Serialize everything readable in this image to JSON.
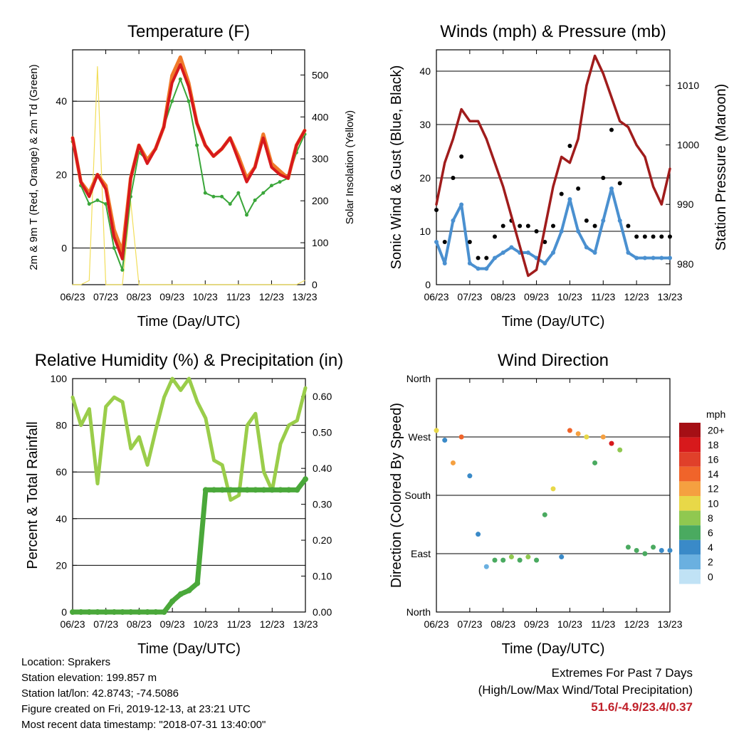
{
  "common": {
    "xticks": [
      "06/23",
      "07/23",
      "08/23",
      "09/23",
      "10/23",
      "11/23",
      "12/23",
      "13/23"
    ],
    "xlabel": "Time (Day/UTC)"
  },
  "info": {
    "location": "Location: Sprakers",
    "elevation": "Station elevation: 199.857 m",
    "latlon": "Station lat/lon: 42.8743; -74.5086",
    "created": "Figure created on Fri, 2019-12-13, at 23:21 UTC",
    "recent": "Most recent data timestamp: \"2018-07-31 13:40:00\""
  },
  "extremes": {
    "title": "Extremes For Past 7 Days",
    "subtitle": "(High/Low/Max Wind/Total Precipitation)",
    "values": "51.6/-4.9/23.4/0.37"
  },
  "colors": {
    "temp_2m": "#d7191c",
    "temp_9m": "#f07a2a",
    "dewpoint": "#3aa63a",
    "solar": "#f2de5a",
    "wind": "#4a90d0",
    "gust": "#000000",
    "pressure": "#a01c1c",
    "rh": "#9acd4a",
    "precip": "#4aa83a"
  },
  "chart_data": [
    {
      "type": "line",
      "title": "Temperature (F)",
      "xlabel": "Time (Day/UTC)",
      "ylabel": "2m & 9m T (Red, Orange) & 2m Td (Green)",
      "ylabel2": "Solar Insolation (Yellow)",
      "ylim": [
        -10,
        54
      ],
      "y2lim": [
        0,
        560
      ],
      "yticks": [
        0,
        20,
        40
      ],
      "y2ticks": [
        0,
        100,
        200,
        300,
        400,
        500
      ],
      "x": [
        0,
        0.25,
        0.5,
        0.75,
        1,
        1.25,
        1.5,
        1.75,
        2,
        2.25,
        2.5,
        2.75,
        3,
        3.25,
        3.5,
        3.75,
        4,
        4.25,
        4.5,
        4.75,
        5,
        5.25,
        5.5,
        5.75,
        6,
        6.25,
        6.5,
        6.75,
        7
      ],
      "series": [
        {
          "name": "2m T",
          "values": [
            30,
            18,
            14,
            20,
            16,
            3,
            -3,
            19,
            28,
            23,
            27,
            33,
            45,
            50,
            44,
            34,
            28,
            25,
            27,
            30,
            24,
            18,
            22,
            30,
            22,
            20,
            19,
            28,
            32
          ]
        },
        {
          "name": "9m T",
          "values": [
            30,
            18,
            15,
            20,
            17,
            5,
            -1,
            19,
            28,
            24,
            27,
            33,
            47,
            52,
            45,
            34,
            28,
            25,
            27,
            30,
            25,
            19,
            22,
            31,
            23,
            21,
            19,
            28,
            32
          ]
        },
        {
          "name": "2m Td",
          "values": [
            29,
            17,
            12,
            13,
            12,
            0,
            -6,
            14,
            26,
            24,
            27,
            33,
            40,
            46,
            40,
            28,
            15,
            14,
            14,
            12,
            15,
            9,
            13,
            15,
            17,
            18,
            19,
            26,
            31
          ]
        },
        {
          "name": "Solar",
          "values": [
            0,
            0,
            10,
            520,
            0,
            0,
            0,
            200,
            0,
            0,
            0,
            0,
            0,
            0,
            0,
            0,
            0,
            0,
            0,
            0,
            0,
            0,
            0,
            0,
            0,
            0,
            0,
            0,
            10
          ]
        }
      ]
    },
    {
      "type": "scatter",
      "title": "Winds (mph) & Pressure (mb)",
      "xlabel": "Time (Day/UTC)",
      "ylabel": "Sonic Wind & Gust (Blue, Black)",
      "ylabel2": "Station Pressure (Maroon)",
      "ylim": [
        0,
        44
      ],
      "y2lim": [
        976.5,
        1016
      ],
      "yticks": [
        0,
        10,
        20,
        30,
        40
      ],
      "y2ticks": [
        980,
        990,
        1000,
        1010
      ],
      "x": [
        0,
        0.25,
        0.5,
        0.75,
        1,
        1.25,
        1.5,
        1.75,
        2,
        2.25,
        2.5,
        2.75,
        3,
        3.25,
        3.5,
        3.75,
        4,
        4.25,
        4.5,
        4.75,
        5,
        5.25,
        5.5,
        5.75,
        6,
        6.25,
        6.5,
        6.75,
        7
      ],
      "series": [
        {
          "name": "Wind",
          "values": [
            8,
            4,
            12,
            15,
            4,
            3,
            3,
            5,
            6,
            7,
            6,
            6,
            5,
            4,
            6,
            10,
            16,
            10,
            7,
            6,
            12,
            18,
            12,
            6,
            5,
            5,
            5,
            5,
            5
          ]
        },
        {
          "name": "Gust",
          "values": [
            14,
            8,
            20,
            24,
            8,
            5,
            5,
            9,
            11,
            12,
            11,
            11,
            10,
            8,
            11,
            17,
            26,
            18,
            12,
            11,
            20,
            29,
            19,
            11,
            9,
            9,
            9,
            9,
            9
          ]
        },
        {
          "name": "Pressure",
          "values": [
            990,
            997,
            1001,
            1006,
            1004,
            1004,
            1001,
            997,
            993,
            988,
            983,
            978,
            979,
            986,
            993,
            998,
            997,
            1001,
            1010,
            1015,
            1012,
            1008,
            1004,
            1003,
            1000,
            998,
            993,
            990,
            996
          ]
        }
      ]
    },
    {
      "type": "line",
      "title": "Relative Humidity (%) & Precipitation (in)",
      "xlabel": "Time (Day/UTC)",
      "ylabel": "Percent & Total Rainfall",
      "ylim": [
        0,
        100
      ],
      "y2lim": [
        0,
        0.65
      ],
      "yticks": [
        0,
        20,
        40,
        60,
        80,
        100
      ],
      "y2ticks": [
        0.0,
        0.1,
        0.2,
        0.3,
        0.4,
        0.5,
        0.6
      ],
      "y2ticklabels": [
        "0.00",
        "0.10",
        "0.20",
        "0.30",
        "0.40",
        "0.50",
        "0.60"
      ],
      "x": [
        0,
        0.25,
        0.5,
        0.75,
        1,
        1.25,
        1.5,
        1.75,
        2,
        2.25,
        2.5,
        2.75,
        3,
        3.25,
        3.5,
        3.75,
        4,
        4.25,
        4.5,
        4.75,
        5,
        5.25,
        5.5,
        5.75,
        6,
        6.25,
        6.5,
        6.75,
        7
      ],
      "series": [
        {
          "name": "RH",
          "values": [
            92,
            80,
            87,
            55,
            88,
            92,
            90,
            70,
            75,
            63,
            78,
            92,
            100,
            95,
            100,
            90,
            83,
            65,
            63,
            48,
            50,
            80,
            85,
            60,
            52,
            72,
            80,
            82,
            96
          ]
        },
        {
          "name": "Precip",
          "values": [
            0,
            0,
            0,
            0,
            0,
            0,
            0,
            0,
            0,
            0,
            0,
            0,
            0.03,
            0.05,
            0.06,
            0.08,
            0.34,
            0.34,
            0.34,
            0.34,
            0.34,
            0.34,
            0.34,
            0.34,
            0.34,
            0.34,
            0.34,
            0.34,
            0.37
          ]
        }
      ]
    },
    {
      "type": "scatter",
      "title": "Wind Direction",
      "xlabel": "Time (Day/UTC)",
      "ylabel": "Direction (Colored By Speed)",
      "ylim": [
        0,
        360
      ],
      "yticks": [
        0,
        90,
        180,
        270,
        360
      ],
      "yticklabels": [
        "North",
        "East",
        "South",
        "West",
        "North"
      ],
      "colorbar": {
        "title": "mph",
        "labels": [
          "20+",
          "18",
          "16",
          "14",
          "12",
          "10",
          "8",
          "6",
          "4",
          "2",
          "0"
        ],
        "colors": [
          "#a50f15",
          "#d7191c",
          "#e0402a",
          "#f0642a",
          "#f5a040",
          "#e8d848",
          "#90c850",
          "#4aaa60",
          "#3a8ac8",
          "#6ab0e0",
          "#c0e2f5"
        ]
      },
      "x": [
        0,
        0.25,
        0.5,
        0.75,
        1,
        1.25,
        1.5,
        1.75,
        2,
        2.25,
        2.5,
        2.75,
        3,
        3.25,
        3.5,
        3.75,
        4,
        4.25,
        4.5,
        4.75,
        5,
        5.25,
        5.5,
        5.75,
        6,
        6.25,
        6.5,
        6.75,
        7
      ],
      "direction": [
        280,
        265,
        230,
        270,
        210,
        120,
        70,
        80,
        80,
        85,
        80,
        85,
        80,
        150,
        190,
        85,
        280,
        275,
        270,
        230,
        270,
        260,
        250,
        100,
        95,
        90,
        100,
        95,
        95
      ],
      "speed": [
        10,
        4,
        12,
        14,
        3,
        3,
        2,
        5,
        6,
        7,
        6,
        7,
        5,
        6,
        9,
        4,
        14,
        12,
        10,
        6,
        12,
        18,
        8,
        5,
        5,
        5,
        5,
        4,
        4
      ]
    }
  ]
}
